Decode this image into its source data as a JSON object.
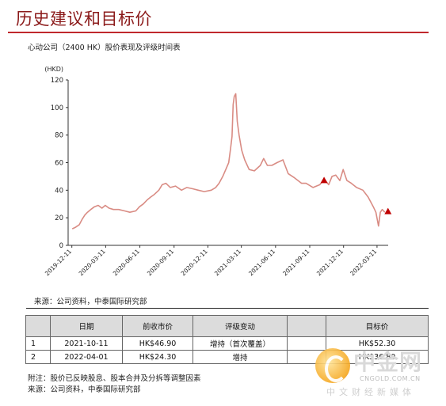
{
  "page": {
    "title": "历史建议和目标价",
    "chart_caption": "心动公司（2400 HK）股价表现及评级时间表",
    "source1": "来源：公司资料，中泰国际研究部",
    "note": "附注：股价已反映股息、股本合并及分拆等调整因素",
    "source2": "来源：公司资料，中泰国际研究部"
  },
  "table": {
    "headers": [
      "",
      "日期",
      "前收市价",
      "评级变动",
      "",
      "目标价"
    ],
    "rows": [
      [
        "1",
        "2021-10-11",
        "HK$46.90",
        "增持（首次覆盖）",
        "",
        "HK$52.30"
      ],
      [
        "2",
        "2022-04-01",
        "HK$24.30",
        "增持",
        "",
        "HK$36.80"
      ]
    ]
  },
  "watermark": {
    "name": "中金网",
    "url": "CNGOLD.COM.CN",
    "slogan": "中文财经新媒体"
  },
  "colors": {
    "line": "#d98c84",
    "marker": "#c00000",
    "rule": "#c0282d"
  },
  "chart_data": {
    "type": "line",
    "title": "心动公司（2400 HK）股价表现及评级时间表",
    "ylabel": "(HKD)",
    "ylim": [
      0,
      120
    ],
    "yticks": [
      0,
      20,
      40,
      60,
      80,
      100,
      120
    ],
    "xlim": [
      "2019-12-01",
      "2022-04-10"
    ],
    "xticks": [
      "2019-12-11",
      "2020-03-11",
      "2020-06-11",
      "2020-09-11",
      "2020-12-11",
      "2021-03-11",
      "2021-06-11",
      "2021-09-11",
      "2021-12-11",
      "2022-03-11"
    ],
    "series": [
      {
        "name": "",
        "points": [
          [
            "2019-12-12",
            12
          ],
          [
            "2019-12-20",
            13
          ],
          [
            "2019-12-31",
            15
          ],
          [
            "2020-01-08",
            19
          ],
          [
            "2020-01-15",
            22
          ],
          [
            "2020-01-22",
            24
          ],
          [
            "2020-01-31",
            26
          ],
          [
            "2020-02-10",
            28
          ],
          [
            "2020-02-20",
            29
          ],
          [
            "2020-03-01",
            27
          ],
          [
            "2020-03-10",
            29
          ],
          [
            "2020-03-20",
            27
          ],
          [
            "2020-04-01",
            26
          ],
          [
            "2020-04-15",
            26
          ],
          [
            "2020-05-01",
            25
          ],
          [
            "2020-05-15",
            24
          ],
          [
            "2020-05-31",
            25
          ],
          [
            "2020-06-10",
            28
          ],
          [
            "2020-06-20",
            30
          ],
          [
            "2020-07-01",
            33
          ],
          [
            "2020-07-10",
            35
          ],
          [
            "2020-07-20",
            37
          ],
          [
            "2020-08-01",
            40
          ],
          [
            "2020-08-10",
            44
          ],
          [
            "2020-08-20",
            45
          ],
          [
            "2020-09-01",
            42
          ],
          [
            "2020-09-15",
            43
          ],
          [
            "2020-10-01",
            40
          ],
          [
            "2020-10-15",
            42
          ],
          [
            "2020-11-01",
            41
          ],
          [
            "2020-11-15",
            40
          ],
          [
            "2020-12-01",
            39
          ],
          [
            "2020-12-20",
            40
          ],
          [
            "2021-01-01",
            42
          ],
          [
            "2021-01-10",
            45
          ],
          [
            "2021-01-20",
            50
          ],
          [
            "2021-01-28",
            55
          ],
          [
            "2021-02-05",
            60
          ],
          [
            "2021-02-10",
            70
          ],
          [
            "2021-02-14",
            79
          ],
          [
            "2021-02-17",
            102
          ],
          [
            "2021-02-20",
            108
          ],
          [
            "2021-02-24",
            110
          ],
          [
            "2021-02-28",
            90
          ],
          [
            "2021-03-05",
            80
          ],
          [
            "2021-03-12",
            69
          ],
          [
            "2021-03-20",
            62
          ],
          [
            "2021-04-01",
            55
          ],
          [
            "2021-04-15",
            54
          ],
          [
            "2021-05-01",
            58
          ],
          [
            "2021-05-10",
            63
          ],
          [
            "2021-05-20",
            58
          ],
          [
            "2021-06-01",
            58
          ],
          [
            "2021-06-15",
            60
          ],
          [
            "2021-07-01",
            62
          ],
          [
            "2021-07-15",
            52
          ],
          [
            "2021-08-01",
            49
          ],
          [
            "2021-08-20",
            45
          ],
          [
            "2021-09-01",
            45
          ],
          [
            "2021-09-20",
            42
          ],
          [
            "2021-10-08",
            44
          ],
          [
            "2021-10-20",
            48
          ],
          [
            "2021-11-01",
            44
          ],
          [
            "2021-11-10",
            50
          ],
          [
            "2021-11-20",
            51
          ],
          [
            "2021-12-01",
            47
          ],
          [
            "2021-12-10",
            55
          ],
          [
            "2021-12-20",
            47
          ],
          [
            "2022-01-01",
            45
          ],
          [
            "2022-01-15",
            42
          ],
          [
            "2022-02-01",
            40
          ],
          [
            "2022-02-15",
            35
          ],
          [
            "2022-03-01",
            28
          ],
          [
            "2022-03-08",
            24
          ],
          [
            "2022-03-15",
            14
          ],
          [
            "2022-03-20",
            24
          ],
          [
            "2022-03-25",
            26
          ],
          [
            "2022-04-01",
            24
          ]
        ]
      }
    ],
    "markers": [
      {
        "label": "1",
        "date": "2021-10-11",
        "value": 46.9
      },
      {
        "label": "2",
        "date": "2022-04-01",
        "value": 24.3
      }
    ]
  }
}
